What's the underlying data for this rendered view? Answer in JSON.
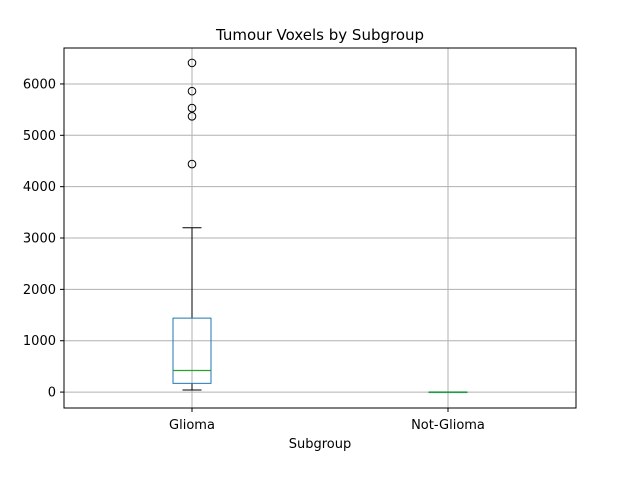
{
  "chart_data": {
    "type": "box",
    "title": "Tumour Voxels by Subgroup",
    "xlabel": "Subgroup",
    "ylabel": "",
    "ylim": [
      -310,
      6700
    ],
    "yticks": [
      0,
      1000,
      2000,
      3000,
      4000,
      5000,
      6000
    ],
    "grid": true,
    "categories": [
      "Glioma",
      "Not-Glioma"
    ],
    "boxes": [
      {
        "name": "Glioma",
        "whisker_low": 40,
        "q1": 170,
        "median": 420,
        "q3": 1440,
        "whisker_high": 3200,
        "outliers": [
          4440,
          5370,
          5530,
          5860,
          6410
        ]
      },
      {
        "name": "Not-Glioma",
        "whisker_low": 0,
        "q1": 0,
        "median": 0,
        "q3": 0,
        "whisker_high": 0,
        "outliers": []
      }
    ],
    "colors": {
      "box": "#1f77b4",
      "median": "#2ca02c",
      "whisker": "#000000",
      "outlier": "#000000",
      "grid": "#b0b0b0"
    }
  }
}
